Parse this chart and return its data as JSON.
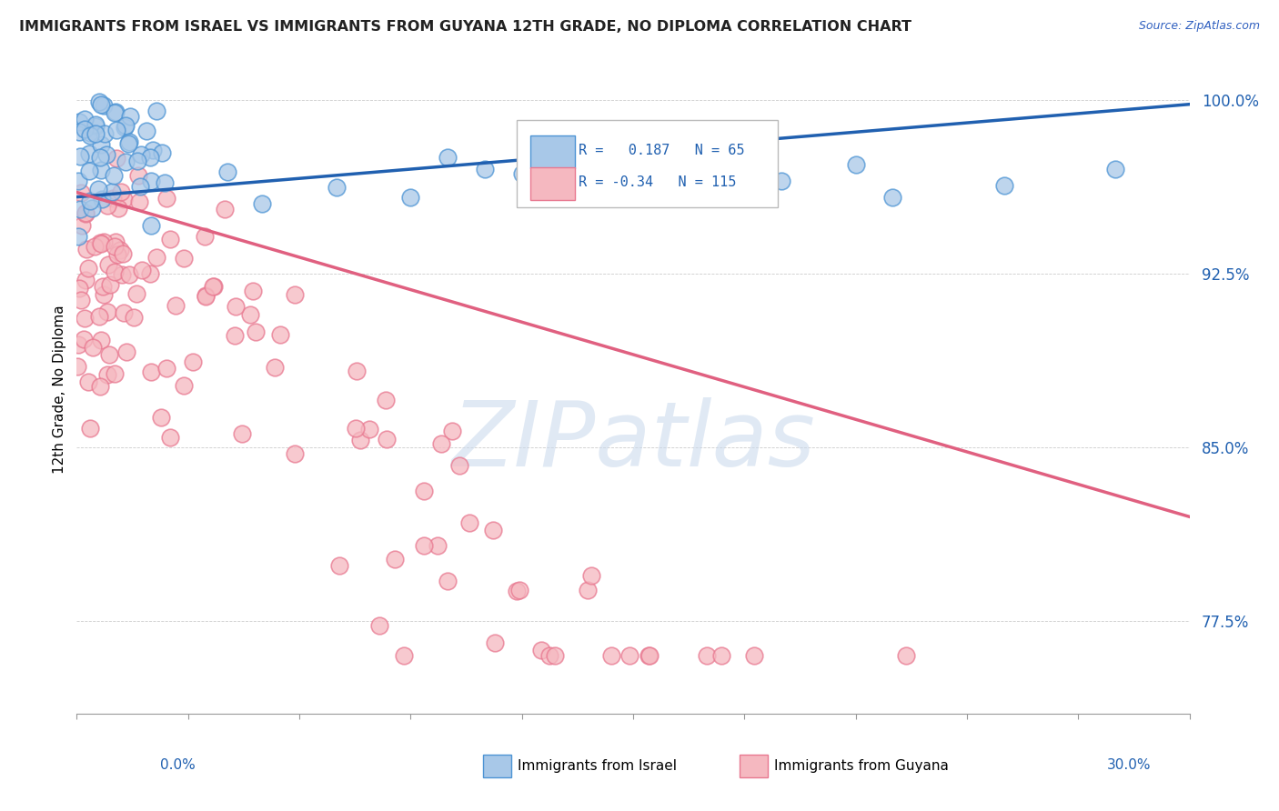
{
  "title": "IMMIGRANTS FROM ISRAEL VS IMMIGRANTS FROM GUYANA 12TH GRADE, NO DIPLOMA CORRELATION CHART",
  "source": "Source: ZipAtlas.com",
  "ylabel": "12th Grade, No Diploma",
  "xmin": 0.0,
  "xmax": 0.3,
  "ymin": 0.735,
  "ymax": 1.015,
  "israel_color": "#a8c8e8",
  "israel_edge": "#4d94d4",
  "guyana_color": "#f5b8c0",
  "guyana_edge": "#e87890",
  "israel_R": 0.187,
  "israel_N": 65,
  "guyana_R": -0.34,
  "guyana_N": 115,
  "israel_line_color": "#2060b0",
  "guyana_line_color": "#e06080",
  "watermark": "ZIPatlas",
  "ytick_vals": [
    0.775,
    0.85,
    0.925,
    1.0
  ],
  "ytick_labels": [
    "77.5%",
    "85.0%",
    "92.5%",
    "100.0%"
  ],
  "israel_trend_x": [
    0.0,
    0.3
  ],
  "israel_trend_y": [
    0.958,
    0.998
  ],
  "guyana_trend_x": [
    0.0,
    0.3
  ],
  "guyana_trend_y": [
    0.96,
    0.82
  ]
}
